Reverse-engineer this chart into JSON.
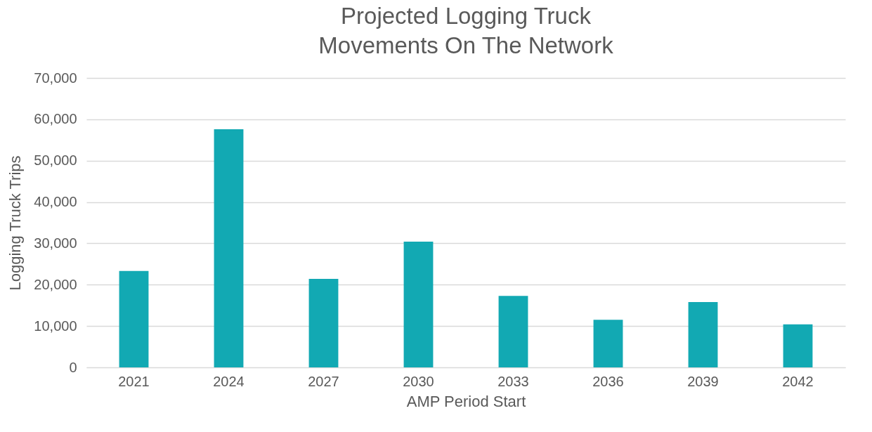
{
  "chart_data": {
    "type": "bar",
    "title": "Projected Logging Truck\nMovements On The Network",
    "xlabel": "AMP Period Start",
    "ylabel": "Logging Truck Trips",
    "categories": [
      "2021",
      "2024",
      "2027",
      "2030",
      "2033",
      "2036",
      "2039",
      "2042"
    ],
    "values": [
      23300,
      57600,
      21400,
      30400,
      17300,
      11500,
      15800,
      10400
    ],
    "color": "#12a9b3",
    "ylim": [
      0,
      70000
    ],
    "yticks": [
      0,
      {
        "value": 10000,
        "label": "10,000"
      },
      {
        "value": 20000,
        "label": "20,000"
      },
      {
        "value": 30000,
        "label": "30,000"
      },
      {
        "value": 40000,
        "label": "40,000"
      },
      {
        "value": 50000,
        "label": "50,000"
      },
      {
        "value": 60000,
        "label": "60,000"
      },
      {
        "value": 70000,
        "label": "70,000"
      }
    ],
    "grid": "y"
  }
}
